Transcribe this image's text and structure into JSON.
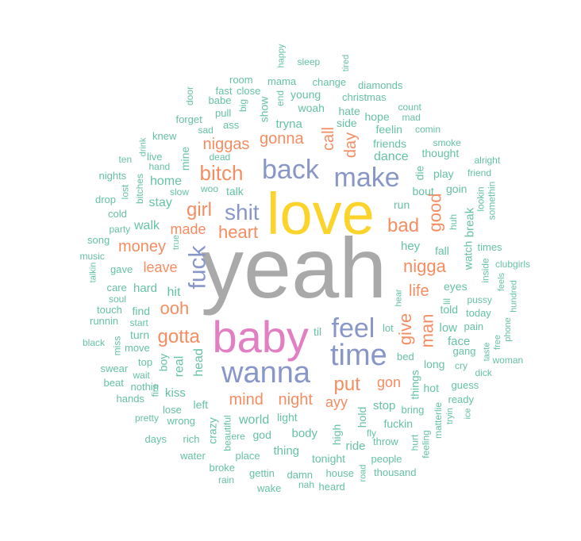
{
  "colors": {
    "gray": "#a9a9a9",
    "yellow": "#fbd32b",
    "pink": "#e27fc2",
    "blue": "#8897c8",
    "orange": "#f58d62",
    "green": "#66c2a4"
  },
  "words": [
    {
      "text": "yeah",
      "color": "gray"
    },
    {
      "text": "love",
      "color": "yellow"
    },
    {
      "text": "baby",
      "color": "pink"
    },
    {
      "text": "wanna",
      "color": "blue"
    },
    {
      "text": "time",
      "color": "blue"
    },
    {
      "text": "back",
      "color": "blue"
    },
    {
      "text": "make",
      "color": "blue"
    },
    {
      "text": "feel",
      "color": "blue"
    },
    {
      "text": "shit",
      "color": "blue"
    },
    {
      "text": "fuck",
      "color": "blue"
    },
    {
      "text": "bitch",
      "color": "orange"
    },
    {
      "text": "gotta",
      "color": "orange"
    },
    {
      "text": "girl",
      "color": "orange"
    },
    {
      "text": "heart",
      "color": "orange"
    },
    {
      "text": "put",
      "color": "orange"
    },
    {
      "text": "give",
      "color": "orange"
    },
    {
      "text": "bad",
      "color": "orange"
    },
    {
      "text": "nigga",
      "color": "orange"
    },
    {
      "text": "ooh",
      "color": "orange"
    },
    {
      "text": "man",
      "color": "orange"
    },
    {
      "text": "good",
      "color": "orange"
    },
    {
      "text": "niggas",
      "color": "orange"
    },
    {
      "text": "gonna",
      "color": "orange"
    },
    {
      "text": "money",
      "color": "orange"
    },
    {
      "text": "mind",
      "color": "orange"
    },
    {
      "text": "night",
      "color": "orange"
    },
    {
      "text": "made",
      "color": "orange"
    },
    {
      "text": "leave",
      "color": "orange"
    },
    {
      "text": "life",
      "color": "orange"
    },
    {
      "text": "call",
      "color": "orange"
    },
    {
      "text": "day",
      "color": "orange"
    },
    {
      "text": "gon",
      "color": "orange"
    },
    {
      "text": "ayy",
      "color": "orange"
    },
    {
      "text": "dance",
      "color": "green"
    },
    {
      "text": "tryna",
      "color": "green"
    },
    {
      "text": "friends",
      "color": "green"
    },
    {
      "text": "stay",
      "color": "green"
    },
    {
      "text": "home",
      "color": "green"
    },
    {
      "text": "walk",
      "color": "green"
    },
    {
      "text": "talk",
      "color": "green"
    },
    {
      "text": "hard",
      "color": "green"
    },
    {
      "text": "hit",
      "color": "green"
    },
    {
      "text": "real",
      "color": "green"
    },
    {
      "text": "head",
      "color": "green"
    },
    {
      "text": "boy",
      "color": "green"
    },
    {
      "text": "find",
      "color": "green"
    },
    {
      "text": "turn",
      "color": "green"
    },
    {
      "text": "move",
      "color": "green"
    },
    {
      "text": "kiss",
      "color": "green"
    },
    {
      "text": "left",
      "color": "green"
    },
    {
      "text": "world",
      "color": "green"
    },
    {
      "text": "light",
      "color": "green"
    },
    {
      "text": "god",
      "color": "green"
    },
    {
      "text": "body",
      "color": "green"
    },
    {
      "text": "thing",
      "color": "green"
    },
    {
      "text": "tonight",
      "color": "green"
    },
    {
      "text": "ride",
      "color": "green"
    },
    {
      "text": "high",
      "color": "green"
    },
    {
      "text": "hold",
      "color": "green"
    },
    {
      "text": "crazy",
      "color": "green"
    },
    {
      "text": "stop",
      "color": "green"
    },
    {
      "text": "fuckin",
      "color": "green"
    },
    {
      "text": "bring",
      "color": "green"
    },
    {
      "text": "things",
      "color": "green"
    },
    {
      "text": "hot",
      "color": "green"
    },
    {
      "text": "long",
      "color": "green"
    },
    {
      "text": "face",
      "color": "green"
    },
    {
      "text": "low",
      "color": "green"
    },
    {
      "text": "told",
      "color": "green"
    },
    {
      "text": "eyes",
      "color": "green"
    },
    {
      "text": "fall",
      "color": "green"
    },
    {
      "text": "hey",
      "color": "green"
    },
    {
      "text": "run",
      "color": "green"
    },
    {
      "text": "bout",
      "color": "green"
    },
    {
      "text": "die",
      "color": "green"
    },
    {
      "text": "play",
      "color": "green"
    },
    {
      "text": "goin",
      "color": "green"
    },
    {
      "text": "thought",
      "color": "green"
    },
    {
      "text": "feelin",
      "color": "green"
    },
    {
      "text": "hope",
      "color": "green"
    },
    {
      "text": "side",
      "color": "green"
    },
    {
      "text": "hate",
      "color": "green"
    },
    {
      "text": "christmas",
      "color": "green"
    },
    {
      "text": "young",
      "color": "green"
    },
    {
      "text": "woah",
      "color": "green"
    },
    {
      "text": "show",
      "color": "green"
    },
    {
      "text": "mine",
      "color": "green"
    },
    {
      "text": "watch",
      "color": "green"
    },
    {
      "text": "break",
      "color": "green"
    },
    {
      "text": "mama",
      "color": "green"
    },
    {
      "text": "change",
      "color": "green"
    },
    {
      "text": "diamonds",
      "color": "green"
    },
    {
      "text": "room",
      "color": "green"
    },
    {
      "text": "close",
      "color": "green"
    },
    {
      "text": "fast",
      "color": "green"
    },
    {
      "text": "babe",
      "color": "green"
    },
    {
      "text": "pull",
      "color": "green"
    },
    {
      "text": "ass",
      "color": "green"
    },
    {
      "text": "forget",
      "color": "green"
    },
    {
      "text": "knew",
      "color": "green"
    },
    {
      "text": "sad",
      "color": "green"
    },
    {
      "text": "live",
      "color": "green"
    },
    {
      "text": "hand",
      "color": "green"
    },
    {
      "text": "woo",
      "color": "green"
    },
    {
      "text": "slow",
      "color": "green"
    },
    {
      "text": "dead",
      "color": "green"
    },
    {
      "text": "ten",
      "color": "green"
    },
    {
      "text": "nights",
      "color": "green"
    },
    {
      "text": "drop",
      "color": "green"
    },
    {
      "text": "cold",
      "color": "green"
    },
    {
      "text": "party",
      "color": "green"
    },
    {
      "text": "song",
      "color": "green"
    },
    {
      "text": "music",
      "color": "green"
    },
    {
      "text": "gave",
      "color": "green"
    },
    {
      "text": "care",
      "color": "green"
    },
    {
      "text": "soul",
      "color": "green"
    },
    {
      "text": "touch",
      "color": "green"
    },
    {
      "text": "runnin",
      "color": "green"
    },
    {
      "text": "start",
      "color": "green"
    },
    {
      "text": "black",
      "color": "green"
    },
    {
      "text": "swear",
      "color": "green"
    },
    {
      "text": "top",
      "color": "green"
    },
    {
      "text": "wait",
      "color": "green"
    },
    {
      "text": "beat",
      "color": "green"
    },
    {
      "text": "nothin",
      "color": "green"
    },
    {
      "text": "hands",
      "color": "green"
    },
    {
      "text": "lose",
      "color": "green"
    },
    {
      "text": "pretty",
      "color": "green"
    },
    {
      "text": "wrong",
      "color": "green"
    },
    {
      "text": "days",
      "color": "green"
    },
    {
      "text": "rich",
      "color": "green"
    },
    {
      "text": "water",
      "color": "green"
    },
    {
      "text": "broke",
      "color": "green"
    },
    {
      "text": "rain",
      "color": "green"
    },
    {
      "text": "place",
      "color": "green"
    },
    {
      "text": "gettin",
      "color": "green"
    },
    {
      "text": "damn",
      "color": "green"
    },
    {
      "text": "wake",
      "color": "green"
    },
    {
      "text": "nah",
      "color": "green"
    },
    {
      "text": "house",
      "color": "green"
    },
    {
      "text": "heard",
      "color": "green"
    },
    {
      "text": "people",
      "color": "green"
    },
    {
      "text": "thousand",
      "color": "green"
    },
    {
      "text": "throw",
      "color": "green"
    },
    {
      "text": "ready",
      "color": "green"
    },
    {
      "text": "guess",
      "color": "green"
    },
    {
      "text": "dick",
      "color": "green"
    },
    {
      "text": "woman",
      "color": "green"
    },
    {
      "text": "gang",
      "color": "green"
    },
    {
      "text": "cry",
      "color": "green"
    },
    {
      "text": "pain",
      "color": "green"
    },
    {
      "text": "today",
      "color": "green"
    },
    {
      "text": "pussy",
      "color": "green"
    },
    {
      "text": "times",
      "color": "green"
    },
    {
      "text": "clubgirls",
      "color": "green"
    },
    {
      "text": "alright",
      "color": "green"
    },
    {
      "text": "friend",
      "color": "green"
    },
    {
      "text": "smoke",
      "color": "green"
    },
    {
      "text": "comin",
      "color": "green"
    },
    {
      "text": "count",
      "color": "green"
    },
    {
      "text": "mad",
      "color": "green"
    },
    {
      "text": "sleep",
      "color": "green"
    },
    {
      "text": "lot",
      "color": "green"
    },
    {
      "text": "bed",
      "color": "green"
    },
    {
      "text": "til",
      "color": "green"
    },
    {
      "text": "happy",
      "color": "green"
    },
    {
      "text": "tired",
      "color": "green"
    },
    {
      "text": "end",
      "color": "green"
    },
    {
      "text": "big",
      "color": "green"
    },
    {
      "text": "door",
      "color": "green"
    },
    {
      "text": "drink",
      "color": "green"
    },
    {
      "text": "bitches",
      "color": "green"
    },
    {
      "text": "lost",
      "color": "green"
    },
    {
      "text": "true",
      "color": "green"
    },
    {
      "text": "talkin",
      "color": "green"
    },
    {
      "text": "miss",
      "color": "green"
    },
    {
      "text": "fire",
      "color": "green"
    },
    {
      "text": "beautiful",
      "color": "green"
    },
    {
      "text": "lookin",
      "color": "green"
    },
    {
      "text": "somethin",
      "color": "green"
    },
    {
      "text": "huh",
      "color": "green"
    },
    {
      "text": "inside",
      "color": "green"
    },
    {
      "text": "feels",
      "color": "green"
    },
    {
      "text": "hundred",
      "color": "green"
    },
    {
      "text": "phone",
      "color": "green"
    },
    {
      "text": "free",
      "color": "green"
    },
    {
      "text": "taste",
      "color": "green"
    },
    {
      "text": "ice",
      "color": "green"
    },
    {
      "text": "tryin",
      "color": "green"
    },
    {
      "text": "matterlie",
      "color": "green"
    },
    {
      "text": "feeling",
      "color": "green"
    },
    {
      "text": "hurt",
      "color": "green"
    },
    {
      "text": "road",
      "color": "green"
    },
    {
      "text": "fly",
      "color": "green"
    },
    {
      "text": "lil",
      "color": "green"
    },
    {
      "text": "hear",
      "color": "green"
    },
    {
      "text": "ere",
      "color": "green"
    }
  ]
}
